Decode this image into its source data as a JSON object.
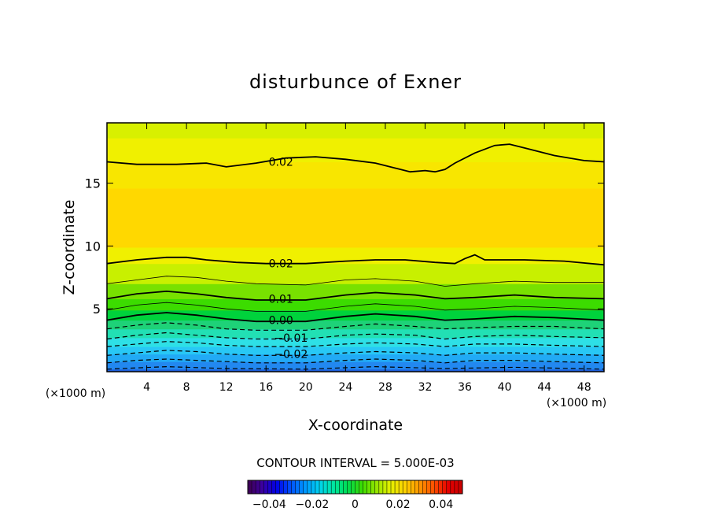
{
  "chart_data": {
    "type": "heatmap",
    "title": "disturbunce of Exner",
    "xlabel": "X-coordinate",
    "ylabel": "Z-coordinate",
    "xunit_left": "(×1000 m)",
    "xunit_right": "(×1000 m)",
    "xlim": [
      0,
      50
    ],
    "ylim": [
      0,
      19.8
    ],
    "xticks": [
      4,
      8,
      12,
      16,
      20,
      24,
      28,
      32,
      36,
      40,
      44,
      48
    ],
    "yticks": [
      5,
      10,
      15
    ],
    "contour_interval_text": "CONTOUR INTERVAL = 5.000E-03",
    "contour_interval": 0.005,
    "contour_labels": [
      {
        "text": "0.02",
        "x": 17.5,
        "z": 16.7
      },
      {
        "text": "0.02",
        "x": 17.5,
        "z": 8.6
      },
      {
        "text": "0.01",
        "x": 17.5,
        "z": 5.8
      },
      {
        "text": "0.00",
        "x": 17.5,
        "z": 4.1
      },
      {
        "text": "−0.01",
        "x": 18.5,
        "z": 2.7
      },
      {
        "text": "−0.02",
        "x": 18.5,
        "z": 1.4
      }
    ],
    "contours": [
      {
        "level": 0.02,
        "style": "bold",
        "points": [
          [
            0,
            16.7
          ],
          [
            3,
            16.5
          ],
          [
            7,
            16.5
          ],
          [
            10,
            16.6
          ],
          [
            12,
            16.3
          ],
          [
            15,
            16.6
          ],
          [
            18,
            17
          ],
          [
            21,
            17.1
          ],
          [
            24,
            16.9
          ],
          [
            27,
            16.6
          ],
          [
            29,
            16.2
          ],
          [
            30.5,
            15.9
          ],
          [
            32,
            16
          ],
          [
            33,
            15.9
          ],
          [
            34,
            16.1
          ],
          [
            35,
            16.6
          ],
          [
            37,
            17.4
          ],
          [
            39,
            18
          ],
          [
            40.5,
            18.1
          ],
          [
            42,
            17.8
          ],
          [
            45,
            17.2
          ],
          [
            48,
            16.8
          ],
          [
            50,
            16.7
          ]
        ]
      },
      {
        "level": 0.02,
        "style": "bold",
        "points": [
          [
            0,
            8.6
          ],
          [
            3,
            8.9
          ],
          [
            6,
            9.1
          ],
          [
            8,
            9.1
          ],
          [
            10,
            8.9
          ],
          [
            13,
            8.7
          ],
          [
            16,
            8.6
          ],
          [
            20,
            8.6
          ],
          [
            24,
            8.8
          ],
          [
            27,
            8.9
          ],
          [
            30,
            8.9
          ],
          [
            33,
            8.7
          ],
          [
            35,
            8.6
          ],
          [
            36,
            9
          ],
          [
            37,
            9.3
          ],
          [
            38,
            8.9
          ],
          [
            42,
            8.9
          ],
          [
            46,
            8.8
          ],
          [
            50,
            8.5
          ]
        ]
      },
      {
        "level": 0.015,
        "style": "thin",
        "points": [
          [
            0,
            7
          ],
          [
            3,
            7.3
          ],
          [
            6,
            7.6
          ],
          [
            9,
            7.5
          ],
          [
            12,
            7.2
          ],
          [
            15,
            7
          ],
          [
            20,
            6.9
          ],
          [
            24,
            7.3
          ],
          [
            27,
            7.4
          ],
          [
            31,
            7.2
          ],
          [
            34,
            6.8
          ],
          [
            37,
            7
          ],
          [
            41,
            7.2
          ],
          [
            45,
            7.1
          ],
          [
            50,
            7.1
          ]
        ]
      },
      {
        "level": 0.01,
        "style": "bold",
        "points": [
          [
            0,
            5.8
          ],
          [
            3,
            6.2
          ],
          [
            6,
            6.4
          ],
          [
            9,
            6.2
          ],
          [
            12,
            5.9
          ],
          [
            15,
            5.7
          ],
          [
            20,
            5.7
          ],
          [
            24,
            6.1
          ],
          [
            27,
            6.3
          ],
          [
            31,
            6.1
          ],
          [
            34,
            5.8
          ],
          [
            37,
            5.9
          ],
          [
            41,
            6.1
          ],
          [
            45,
            5.9
          ],
          [
            50,
            5.8
          ]
        ]
      },
      {
        "level": 0.005,
        "style": "thin",
        "points": [
          [
            0,
            4.9
          ],
          [
            3,
            5.3
          ],
          [
            6,
            5.5
          ],
          [
            9,
            5.3
          ],
          [
            12,
            5
          ],
          [
            15,
            4.8
          ],
          [
            20,
            4.8
          ],
          [
            24,
            5.2
          ],
          [
            27,
            5.4
          ],
          [
            31,
            5.2
          ],
          [
            34,
            4.9
          ],
          [
            37,
            5
          ],
          [
            41,
            5.2
          ],
          [
            45,
            5.1
          ],
          [
            50,
            4.9
          ]
        ]
      },
      {
        "level": 0.0,
        "style": "bold",
        "points": [
          [
            0,
            4.1
          ],
          [
            3,
            4.5
          ],
          [
            6,
            4.7
          ],
          [
            9,
            4.5
          ],
          [
            12,
            4.2
          ],
          [
            15,
            4
          ],
          [
            20,
            4
          ],
          [
            24,
            4.4
          ],
          [
            27,
            4.6
          ],
          [
            31,
            4.4
          ],
          [
            34,
            4.1
          ],
          [
            37,
            4.2
          ],
          [
            41,
            4.4
          ],
          [
            45,
            4.3
          ],
          [
            50,
            4.1
          ]
        ]
      },
      {
        "level": -0.005,
        "style": "dashed",
        "points": [
          [
            0,
            3.4
          ],
          [
            3,
            3.7
          ],
          [
            6,
            3.9
          ],
          [
            9,
            3.7
          ],
          [
            12,
            3.4
          ],
          [
            15,
            3.3
          ],
          [
            20,
            3.3
          ],
          [
            24,
            3.6
          ],
          [
            27,
            3.8
          ],
          [
            31,
            3.6
          ],
          [
            34,
            3.4
          ],
          [
            37,
            3.5
          ],
          [
            41,
            3.6
          ],
          [
            45,
            3.6
          ],
          [
            50,
            3.4
          ]
        ]
      },
      {
        "level": -0.01,
        "style": "dashed",
        "points": [
          [
            0,
            2.6
          ],
          [
            3,
            2.9
          ],
          [
            6,
            3.1
          ],
          [
            9,
            2.9
          ],
          [
            12,
            2.7
          ],
          [
            15,
            2.6
          ],
          [
            20,
            2.6
          ],
          [
            24,
            2.9
          ],
          [
            27,
            3
          ],
          [
            31,
            2.9
          ],
          [
            34,
            2.6
          ],
          [
            37,
            2.8
          ],
          [
            41,
            2.9
          ],
          [
            45,
            2.8
          ],
          [
            50,
            2.7
          ]
        ]
      },
      {
        "level": -0.015,
        "style": "dashed",
        "points": [
          [
            0,
            2
          ],
          [
            3,
            2.2
          ],
          [
            6,
            2.4
          ],
          [
            9,
            2.3
          ],
          [
            12,
            2.1
          ],
          [
            15,
            2
          ],
          [
            20,
            2
          ],
          [
            24,
            2.2
          ],
          [
            27,
            2.3
          ],
          [
            31,
            2.2
          ],
          [
            34,
            2
          ],
          [
            37,
            2.2
          ],
          [
            41,
            2.2
          ],
          [
            45,
            2.1
          ],
          [
            50,
            2
          ]
        ]
      },
      {
        "level": -0.02,
        "style": "dashed",
        "points": [
          [
            0,
            1.3
          ],
          [
            3,
            1.5
          ],
          [
            6,
            1.7
          ],
          [
            9,
            1.6
          ],
          [
            12,
            1.4
          ],
          [
            15,
            1.3
          ],
          [
            20,
            1.3
          ],
          [
            24,
            1.5
          ],
          [
            27,
            1.6
          ],
          [
            31,
            1.5
          ],
          [
            34,
            1.3
          ],
          [
            37,
            1.5
          ],
          [
            41,
            1.5
          ],
          [
            45,
            1.4
          ],
          [
            50,
            1.3
          ]
        ]
      },
      {
        "level": -0.025,
        "style": "dashed",
        "points": [
          [
            0,
            0.7
          ],
          [
            3,
            0.9
          ],
          [
            6,
            1
          ],
          [
            9,
            0.9
          ],
          [
            12,
            0.8
          ],
          [
            15,
            0.7
          ],
          [
            20,
            0.7
          ],
          [
            24,
            0.9
          ],
          [
            27,
            1
          ],
          [
            31,
            0.9
          ],
          [
            34,
            0.7
          ],
          [
            37,
            0.9
          ],
          [
            41,
            0.9
          ],
          [
            45,
            0.8
          ],
          [
            50,
            0.7
          ]
        ]
      },
      {
        "level": -0.03,
        "style": "dashed",
        "points": [
          [
            0,
            0.2
          ],
          [
            6,
            0.4
          ],
          [
            12,
            0.25
          ],
          [
            20,
            0.2
          ],
          [
            27,
            0.4
          ],
          [
            34,
            0.25
          ],
          [
            41,
            0.35
          ],
          [
            50,
            0.2
          ]
        ]
      }
    ],
    "fill_bands": [
      {
        "from": 0.0,
        "to": 0.2,
        "color": "#1e5fdc"
      },
      {
        "from": 0.2,
        "to": 0.8,
        "color": "#2288f0"
      },
      {
        "from": 0.8,
        "to": 1.4,
        "color": "#22aaf5"
      },
      {
        "from": 1.4,
        "to": 2.0,
        "color": "#28c8f5"
      },
      {
        "from": 2.0,
        "to": 2.7,
        "color": "#2ee0e6"
      },
      {
        "from": 2.7,
        "to": 3.4,
        "color": "#22e0b4"
      },
      {
        "from": 3.4,
        "to": 4.1,
        "color": "#1ed278"
      },
      {
        "from": 4.1,
        "to": 4.9,
        "color": "#00d23c"
      },
      {
        "from": 4.9,
        "to": 5.8,
        "color": "#3cdc00"
      },
      {
        "from": 5.8,
        "to": 7.0,
        "color": "#78e100"
      },
      {
        "from": 7.0,
        "to": 8.6,
        "color": "#c8f000"
      },
      {
        "from": 8.6,
        "to": 9.9,
        "color": "#f0f000"
      },
      {
        "from": 9.9,
        "to": 14.6,
        "color": "#ffd800"
      },
      {
        "from": 14.6,
        "to": 16.7,
        "color": "#f8e600"
      },
      {
        "from": 16.7,
        "to": 18.6,
        "color": "#f0f000"
      },
      {
        "from": 18.6,
        "to": 19.8,
        "color": "#d8f000"
      }
    ],
    "colorbar": {
      "ticks": [
        "−0.04",
        "−0.02",
        "0",
        "0.02",
        "0.04"
      ],
      "tick_values": [
        -0.04,
        -0.02,
        0,
        0.02,
        0.04
      ],
      "range": [
        -0.05,
        0.05
      ],
      "colors": [
        "#400050",
        "#3c00a0",
        "#0000e6",
        "#0050ff",
        "#0096ff",
        "#00d2f0",
        "#00e6a0",
        "#00dc50",
        "#3cdc00",
        "#96e600",
        "#e6f000",
        "#ffd200",
        "#ff9600",
        "#ff5000",
        "#e60000",
        "#c80000"
      ]
    }
  }
}
